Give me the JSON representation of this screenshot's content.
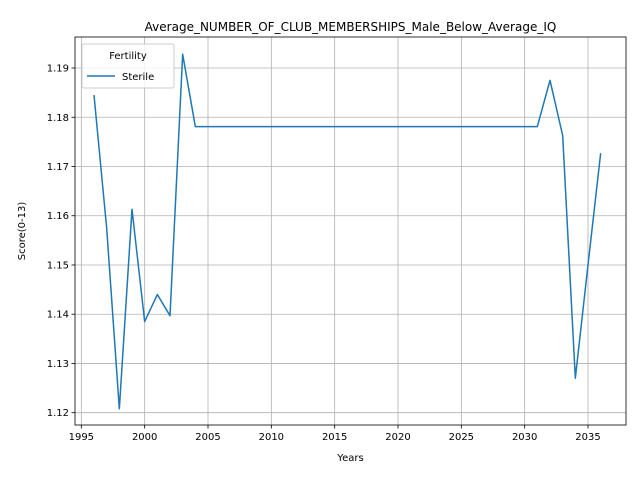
{
  "chart_data": {
    "type": "line",
    "title": "Average_NUMBER_OF_CLUB_MEMBERSHIPS_Male_Below_Average_IQ",
    "xlabel": "Years",
    "ylabel": "Score(0-13)",
    "xlim": [
      1994.5,
      2038
    ],
    "ylim": [
      1.1175,
      1.1963
    ],
    "xticks": [
      1995,
      2000,
      2005,
      2010,
      2015,
      2020,
      2025,
      2030,
      2035
    ],
    "yticks": [
      1.12,
      1.13,
      1.14,
      1.15,
      1.16,
      1.17,
      1.18,
      1.19
    ],
    "ytick_labels": [
      "1.12",
      "1.13",
      "1.14",
      "1.15",
      "1.16",
      "1.17",
      "1.18",
      "1.19"
    ],
    "grid": true,
    "legend": {
      "title": "Fertility",
      "position": "upper-left"
    },
    "series": [
      {
        "name": "Sterile",
        "color": "#1f77b4",
        "x": [
          1996,
          1997,
          1998,
          1999,
          2000,
          2001,
          2002,
          2003,
          2004,
          2005,
          2006,
          2007,
          2008,
          2009,
          2010,
          2011,
          2012,
          2013,
          2014,
          2015,
          2016,
          2017,
          2018,
          2019,
          2020,
          2021,
          2022,
          2023,
          2024,
          2025,
          2026,
          2027,
          2028,
          2029,
          2030,
          2031,
          2032,
          2033,
          2034,
          2035,
          2036
        ],
        "y": [
          1.1845,
          1.1575,
          1.1208,
          1.1613,
          1.1385,
          1.144,
          1.1397,
          1.1928,
          1.1781,
          1.1781,
          1.1781,
          1.1781,
          1.1781,
          1.1781,
          1.1781,
          1.1781,
          1.1781,
          1.1781,
          1.1781,
          1.1781,
          1.1781,
          1.1781,
          1.1781,
          1.1781,
          1.1781,
          1.1781,
          1.1781,
          1.1781,
          1.1781,
          1.1781,
          1.1781,
          1.1781,
          1.1781,
          1.1781,
          1.1781,
          1.1781,
          1.1875,
          1.1763,
          1.127,
          1.15,
          1.1727
        ]
      }
    ]
  }
}
